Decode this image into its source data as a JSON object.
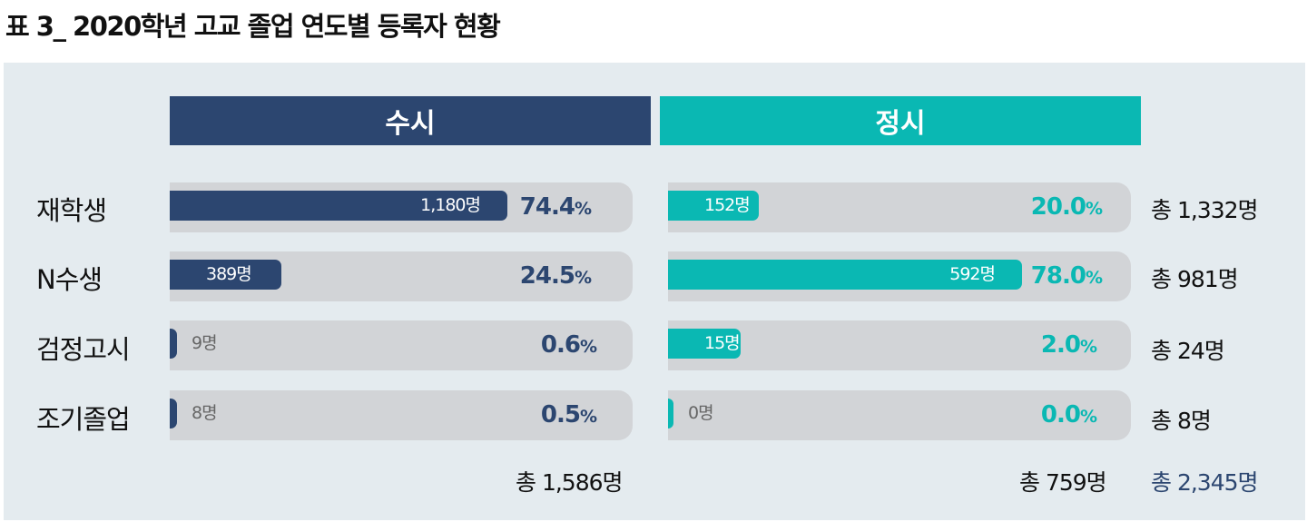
{
  "title": "표 3_ 2020학년 고교 졸업 연도별 등록자 현황",
  "headers": {
    "susi": "수시",
    "jeongsi": "정시"
  },
  "pct_unit": "%",
  "rows": [
    {
      "label": "재학생",
      "susi_count": "1,180명",
      "susi_pct": "74.4",
      "jeongsi_count": "152명",
      "jeongsi_pct": "20.0",
      "total": "총 1,332명"
    },
    {
      "label": "N수생",
      "susi_count": "389명",
      "susi_pct": "24.5",
      "jeongsi_count": "592명",
      "jeongsi_pct": "78.0",
      "total": "총 981명"
    },
    {
      "label": "검정고시",
      "susi_count": "9명",
      "susi_pct": "0.6",
      "jeongsi_count": "15명",
      "jeongsi_pct": "2.0",
      "total": "총 24명"
    },
    {
      "label": "조기졸업",
      "susi_count": "8명",
      "susi_pct": "0.5",
      "jeongsi_count": "0명",
      "jeongsi_pct": "0.0",
      "total": "총 8명"
    }
  ],
  "totals": {
    "susi": "총 1,586명",
    "jeongsi": "총 759명",
    "grand": "총 2,345명"
  },
  "colors": {
    "susi": "#2c4670",
    "jeongsi": "#0ab8b3",
    "track": "#d2d4d7",
    "panel": "#e4ebef"
  },
  "chart_data": {
    "type": "bar",
    "orientation": "horizontal",
    "categories": [
      "재학생",
      "N수생",
      "검정고시",
      "조기졸업"
    ],
    "series": [
      {
        "name": "수시",
        "counts": [
          1180,
          389,
          9,
          8
        ],
        "percent": [
          74.4,
          24.5,
          0.6,
          0.5
        ]
      },
      {
        "name": "정시",
        "counts": [
          152,
          592,
          15,
          0
        ],
        "percent": [
          20.0,
          78.0,
          2.0,
          0.0
        ]
      }
    ],
    "row_totals": [
      1332,
      981,
      24,
      8
    ],
    "series_totals": [
      1586,
      759
    ],
    "grand_total": 2345
  }
}
